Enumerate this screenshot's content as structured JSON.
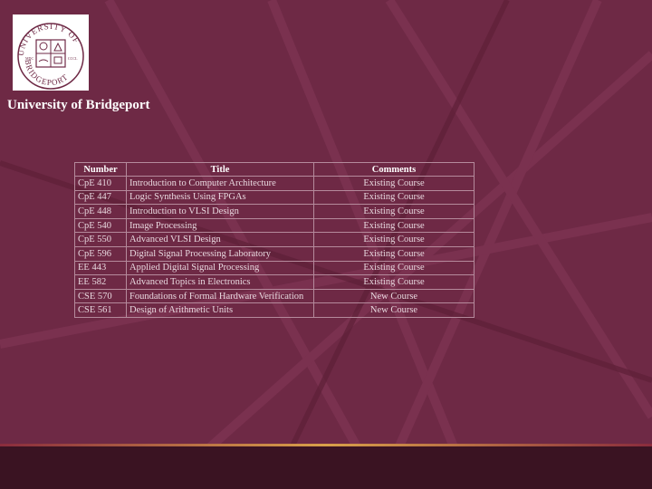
{
  "header": {
    "org_name": "University of Bridgeport",
    "logo": {
      "top_text": "UNIVERSITY OF",
      "bottom_text": "BRIDGEPORT",
      "left_mark": "MDC",
      "right_mark": "CCCL"
    }
  },
  "table": {
    "columns": [
      "Number",
      "Title",
      "Comments"
    ],
    "rows": [
      {
        "number": "CpE 410",
        "title": "Introduction to Computer Architecture",
        "comment": "Existing Course"
      },
      {
        "number": "CpE 447",
        "title": "Logic Synthesis Using FPGAs",
        "comment": "Existing Course"
      },
      {
        "number": "CpE 448",
        "title": "Introduction to VLSI Design",
        "comment": "Existing Course"
      },
      {
        "number": "CpE 540",
        "title": "Image Processing",
        "comment": "Existing Course"
      },
      {
        "number": "CpE 550",
        "title": "Advanced VLSI Design",
        "comment": "Existing Course"
      },
      {
        "number": "CpE 596",
        "title": "Digital Signal Processing Laboratory",
        "comment": "Existing Course"
      },
      {
        "number": "EE 443",
        "title": "Applied Digital Signal Processing",
        "comment": "Existing Course"
      },
      {
        "number": "EE 582",
        "title": "Advanced Topics in Electronics",
        "comment": "Existing Course"
      },
      {
        "number": "CSE 570",
        "title": "Foundations of Formal Hardware Verification",
        "comment": "New Course"
      },
      {
        "number": "CSE 561",
        "title": "Design of Arithmetic Units",
        "comment": "New Course"
      }
    ]
  },
  "colors": {
    "background": "#6e2945",
    "footer": "#3a1322",
    "accent": "#d9a04a"
  }
}
